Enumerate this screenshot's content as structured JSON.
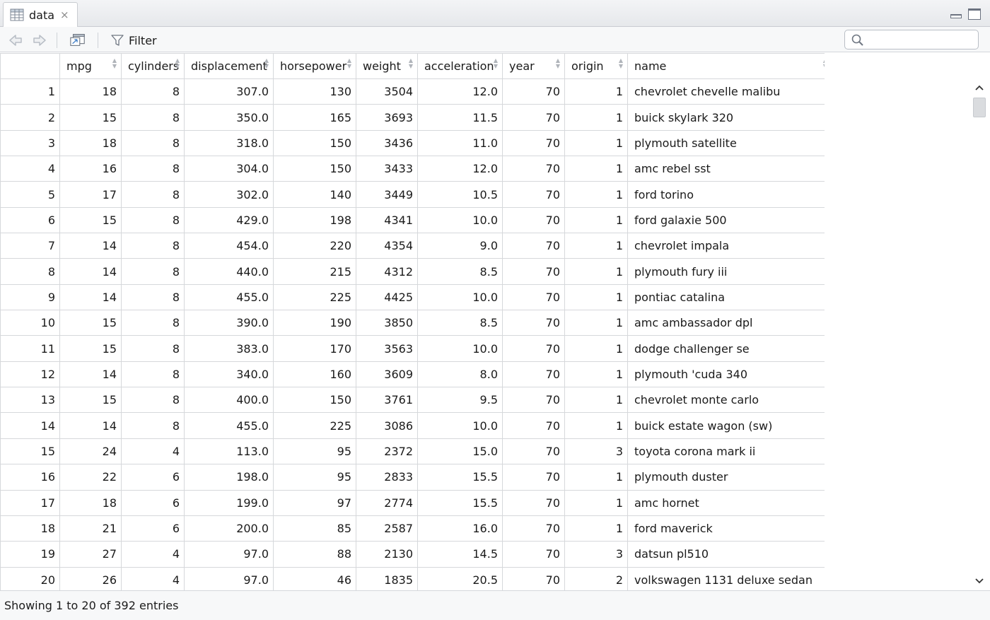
{
  "tab": {
    "label": "data",
    "close": "×",
    "icon": "table-grid-icon"
  },
  "toolbar": {
    "back_icon": "arrow-back-icon",
    "forward_icon": "arrow-forward-icon",
    "popout_icon": "popout-window-icon",
    "filter_label": "Filter",
    "filter_icon": "funnel-icon",
    "search_icon": "magnifier-icon",
    "search_value": ""
  },
  "table": {
    "columns": [
      "mpg",
      "cylinders",
      "displacement",
      "horsepower",
      "weight",
      "acceleration",
      "year",
      "origin",
      "name"
    ],
    "rows": [
      [
        "1",
        "18",
        "8",
        "307.0",
        "130",
        "3504",
        "12.0",
        "70",
        "1",
        "chevrolet chevelle malibu"
      ],
      [
        "2",
        "15",
        "8",
        "350.0",
        "165",
        "3693",
        "11.5",
        "70",
        "1",
        "buick skylark 320"
      ],
      [
        "3",
        "18",
        "8",
        "318.0",
        "150",
        "3436",
        "11.0",
        "70",
        "1",
        "plymouth satellite"
      ],
      [
        "4",
        "16",
        "8",
        "304.0",
        "150",
        "3433",
        "12.0",
        "70",
        "1",
        "amc rebel sst"
      ],
      [
        "5",
        "17",
        "8",
        "302.0",
        "140",
        "3449",
        "10.5",
        "70",
        "1",
        "ford torino"
      ],
      [
        "6",
        "15",
        "8",
        "429.0",
        "198",
        "4341",
        "10.0",
        "70",
        "1",
        "ford galaxie 500"
      ],
      [
        "7",
        "14",
        "8",
        "454.0",
        "220",
        "4354",
        "9.0",
        "70",
        "1",
        "chevrolet impala"
      ],
      [
        "8",
        "14",
        "8",
        "440.0",
        "215",
        "4312",
        "8.5",
        "70",
        "1",
        "plymouth fury iii"
      ],
      [
        "9",
        "14",
        "8",
        "455.0",
        "225",
        "4425",
        "10.0",
        "70",
        "1",
        "pontiac catalina"
      ],
      [
        "10",
        "15",
        "8",
        "390.0",
        "190",
        "3850",
        "8.5",
        "70",
        "1",
        "amc ambassador dpl"
      ],
      [
        "11",
        "15",
        "8",
        "383.0",
        "170",
        "3563",
        "10.0",
        "70",
        "1",
        "dodge challenger se"
      ],
      [
        "12",
        "14",
        "8",
        "340.0",
        "160",
        "3609",
        "8.0",
        "70",
        "1",
        "plymouth 'cuda 340"
      ],
      [
        "13",
        "15",
        "8",
        "400.0",
        "150",
        "3761",
        "9.5",
        "70",
        "1",
        "chevrolet monte carlo"
      ],
      [
        "14",
        "14",
        "8",
        "455.0",
        "225",
        "3086",
        "10.0",
        "70",
        "1",
        "buick estate wagon (sw)"
      ],
      [
        "15",
        "24",
        "4",
        "113.0",
        "95",
        "2372",
        "15.0",
        "70",
        "3",
        "toyota corona mark ii"
      ],
      [
        "16",
        "22",
        "6",
        "198.0",
        "95",
        "2833",
        "15.5",
        "70",
        "1",
        "plymouth duster"
      ],
      [
        "17",
        "18",
        "6",
        "199.0",
        "97",
        "2774",
        "15.5",
        "70",
        "1",
        "amc hornet"
      ],
      [
        "18",
        "21",
        "6",
        "200.0",
        "85",
        "2587",
        "16.0",
        "70",
        "1",
        "ford maverick"
      ],
      [
        "19",
        "27",
        "4",
        "97.0",
        "88",
        "2130",
        "14.5",
        "70",
        "3",
        "datsun pl510"
      ],
      [
        "20",
        "26",
        "4",
        "97.0",
        "46",
        "1835",
        "20.5",
        "70",
        "2",
        "volkswagen 1131 deluxe sedan"
      ]
    ]
  },
  "scrollbar": {
    "up_icon": "chevron-up-icon",
    "down_icon": "chevron-down-icon"
  },
  "status": {
    "text": "Showing 1 to 20 of 392 entries"
  }
}
